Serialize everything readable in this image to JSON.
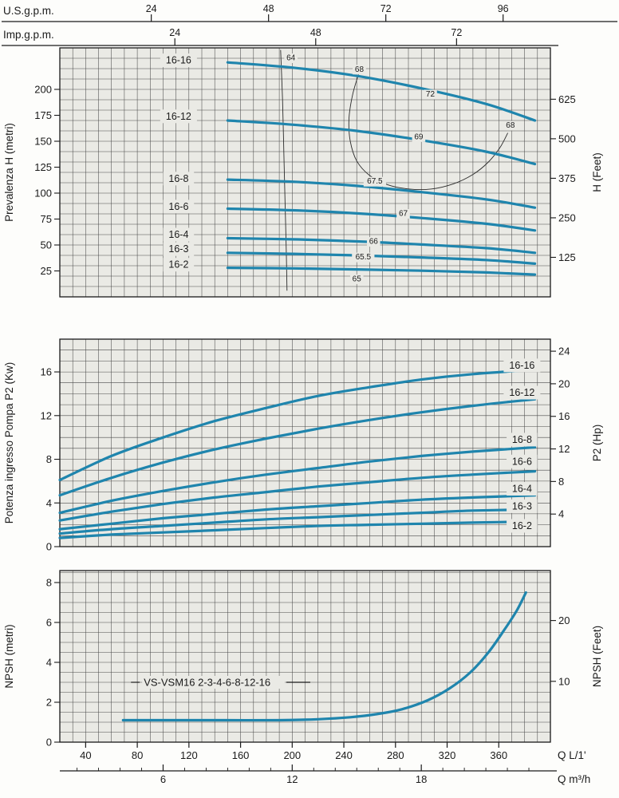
{
  "colors": {
    "plot_bg": "#eaeae5",
    "grid": "#4a4a4a",
    "border": "#1a1a1a",
    "curve": "#1f85ad",
    "contour": "#2b2b2b",
    "text": "#1a1a1a"
  },
  "x_range_lpm": [
    20,
    400
  ],
  "top_scales": {
    "us": {
      "label": "U.S.g.p.m.",
      "ticks": [
        24,
        48,
        72,
        96
      ]
    },
    "imp": {
      "label": "Imp.g.p.m.",
      "ticks": [
        24,
        48,
        72
      ]
    }
  },
  "bottom_axes": {
    "lpm": {
      "label": "Q L/1'",
      "ticks": [
        40,
        80,
        120,
        160,
        200,
        240,
        280,
        320,
        360
      ]
    },
    "m3h": {
      "label": "Q m³/h",
      "ticks": [
        6,
        12,
        18
      ]
    }
  },
  "chart_data": [
    {
      "id": "head",
      "type": "line",
      "ylabel_left": "Prevalenza H (metri)",
      "ylabel_right": "H (Feet)",
      "xlabel": "Q L/1'",
      "y_range": [
        0,
        240
      ],
      "yticks_left": [
        25,
        50,
        75,
        100,
        125,
        150,
        175,
        200
      ],
      "yticks_right": [
        125,
        250,
        375,
        500,
        625
      ],
      "right_unit": "feet",
      "series": [
        {
          "name": "16-16",
          "label_at": [
            112,
            228
          ],
          "points": [
            [
              150,
              226
            ],
            [
              200,
              221
            ],
            [
              250,
              213
            ],
            [
              300,
              201
            ],
            [
              350,
              186
            ],
            [
              388,
              170
            ]
          ]
        },
        {
          "name": "16-12",
          "label_at": [
            112,
            174
          ],
          "points": [
            [
              150,
              170
            ],
            [
              200,
              166
            ],
            [
              250,
              160
            ],
            [
              300,
              151
            ],
            [
              350,
              140
            ],
            [
              388,
              128
            ]
          ]
        },
        {
          "name": "16-8",
          "label_at": [
            112,
            114
          ],
          "points": [
            [
              150,
              113
            ],
            [
              200,
              111
            ],
            [
              250,
              107
            ],
            [
              300,
              101
            ],
            [
              350,
              94
            ],
            [
              388,
              86
            ]
          ]
        },
        {
          "name": "16-6",
          "label_at": [
            112,
            87
          ],
          "points": [
            [
              150,
              85
            ],
            [
              200,
              83.5
            ],
            [
              250,
              80.5
            ],
            [
              300,
              76
            ],
            [
              350,
              70.5
            ],
            [
              388,
              64
            ]
          ]
        },
        {
          "name": "16-4",
          "label_at": [
            112,
            60
          ],
          "points": [
            [
              150,
              56.5
            ],
            [
              200,
              55.5
            ],
            [
              250,
              53.5
            ],
            [
              300,
              50.5
            ],
            [
              350,
              47
            ],
            [
              388,
              42.5
            ]
          ]
        },
        {
          "name": "16-3",
          "label_at": [
            112,
            46
          ],
          "points": [
            [
              150,
              42.5
            ],
            [
              200,
              41.5
            ],
            [
              250,
              40
            ],
            [
              300,
              38
            ],
            [
              350,
              35.5
            ],
            [
              388,
              32
            ]
          ]
        },
        {
          "name": "16-2",
          "label_at": [
            112,
            31
          ],
          "points": [
            [
              150,
              28
            ],
            [
              200,
              27.5
            ],
            [
              250,
              26.5
            ],
            [
              300,
              25.2
            ],
            [
              350,
              23.5
            ],
            [
              388,
              21.5
            ]
          ]
        }
      ],
      "efficiency": {
        "lines": [
          {
            "label": "64",
            "label_at": [
              199,
              230
            ],
            "points": [
              [
                191,
                238
              ],
              [
                192.5,
                190
              ],
              [
                193.5,
                140
              ],
              [
                194.5,
                90
              ],
              [
                195.5,
                40
              ],
              [
                196,
                6
              ]
            ]
          },
          {
            "label": "68",
            "label_at": [
              252,
              219
            ],
            "points": [
              [
                253,
                221
              ],
              [
                247,
                196
              ],
              [
                244,
                172
              ],
              [
                245,
                150
              ],
              [
                250,
                131
              ],
              [
                260,
                117
              ],
              [
                274,
                108
              ],
              [
                290,
                104
              ],
              [
                308,
                104
              ],
              [
                325,
                109
              ],
              [
                340,
                118
              ],
              [
                352,
                130
              ],
              [
                361,
                144
              ],
              [
                367,
                158
              ]
            ]
          }
        ],
        "point_labels": [
          {
            "label": "72",
            "at": [
              307,
              195
            ]
          },
          {
            "label": "69",
            "at": [
              298,
              154
            ]
          },
          {
            "label": "68",
            "at": [
              369,
              165
            ]
          },
          {
            "label": "67.5",
            "at": [
              264,
              111
            ]
          },
          {
            "label": "67",
            "at": [
              286,
              80
            ]
          },
          {
            "label": "66",
            "at": [
              263,
              53
            ]
          },
          {
            "label": "65.5",
            "at": [
              255,
              38
            ]
          },
          {
            "label": "65",
            "at": [
              250,
              17
            ]
          }
        ]
      }
    },
    {
      "id": "power",
      "type": "line",
      "ylabel_left": "Potenza ingresso Pompa P2 (Kw)",
      "ylabel_right": "P2 (Hp)",
      "xlabel": "Q L/1'",
      "y_range": [
        0,
        19
      ],
      "yticks_left": [
        0,
        4,
        8,
        12,
        16
      ],
      "yticks_right": [
        4,
        8,
        12,
        16,
        20,
        24
      ],
      "right_unit": "hp",
      "series": [
        {
          "name": "16-16",
          "label_at": [
            378,
            16.6
          ],
          "points": [
            [
              20,
              6.1
            ],
            [
              60,
              8.3
            ],
            [
              100,
              10.0
            ],
            [
              140,
              11.5
            ],
            [
              180,
              12.7
            ],
            [
              220,
              13.8
            ],
            [
              260,
              14.6
            ],
            [
              300,
              15.3
            ],
            [
              340,
              15.8
            ],
            [
              388,
              16.2
            ]
          ]
        },
        {
          "name": "16-12",
          "label_at": [
            378,
            14.1
          ],
          "points": [
            [
              20,
              4.7
            ],
            [
              60,
              6.3
            ],
            [
              100,
              7.7
            ],
            [
              140,
              8.9
            ],
            [
              180,
              9.9
            ],
            [
              220,
              10.8
            ],
            [
              260,
              11.6
            ],
            [
              300,
              12.3
            ],
            [
              340,
              12.9
            ],
            [
              388,
              13.5
            ]
          ]
        },
        {
          "name": "16-8",
          "label_at": [
            378,
            9.8
          ],
          "points": [
            [
              20,
              3.1
            ],
            [
              60,
              4.2
            ],
            [
              100,
              5.1
            ],
            [
              140,
              5.9
            ],
            [
              180,
              6.6
            ],
            [
              220,
              7.2
            ],
            [
              260,
              7.8
            ],
            [
              300,
              8.3
            ],
            [
              340,
              8.7
            ],
            [
              388,
              9.1
            ]
          ]
        },
        {
          "name": "16-6",
          "label_at": [
            378,
            7.8
          ],
          "points": [
            [
              20,
              2.4
            ],
            [
              60,
              3.2
            ],
            [
              100,
              3.9
            ],
            [
              140,
              4.5
            ],
            [
              180,
              5.0
            ],
            [
              220,
              5.5
            ],
            [
              260,
              5.9
            ],
            [
              300,
              6.3
            ],
            [
              340,
              6.6
            ],
            [
              388,
              6.9
            ]
          ]
        },
        {
          "name": "16-4",
          "label_at": [
            378,
            5.3
          ],
          "points": [
            [
              20,
              1.6
            ],
            [
              60,
              2.1
            ],
            [
              100,
              2.6
            ],
            [
              140,
              3.0
            ],
            [
              180,
              3.4
            ],
            [
              220,
              3.7
            ],
            [
              260,
              4.0
            ],
            [
              300,
              4.3
            ],
            [
              340,
              4.5
            ],
            [
              388,
              4.7
            ]
          ]
        },
        {
          "name": "16-3",
          "label_at": [
            378,
            3.7
          ],
          "points": [
            [
              20,
              1.2
            ],
            [
              60,
              1.6
            ],
            [
              100,
              1.9
            ],
            [
              140,
              2.2
            ],
            [
              180,
              2.5
            ],
            [
              220,
              2.7
            ],
            [
              260,
              2.9
            ],
            [
              300,
              3.1
            ],
            [
              340,
              3.3
            ],
            [
              388,
              3.4
            ]
          ]
        },
        {
          "name": "16-2",
          "label_at": [
            378,
            1.9
          ],
          "points": [
            [
              20,
              0.8
            ],
            [
              60,
              1.1
            ],
            [
              100,
              1.3
            ],
            [
              140,
              1.5
            ],
            [
              180,
              1.7
            ],
            [
              220,
              1.9
            ],
            [
              260,
              2.0
            ],
            [
              300,
              2.1
            ],
            [
              340,
              2.2
            ],
            [
              388,
              2.3
            ]
          ]
        }
      ]
    },
    {
      "id": "npsh",
      "type": "line",
      "ylabel_left": "NPSH (metri)",
      "ylabel_right": "NPSH (Feet)",
      "xlabel": "Q L/1'",
      "y_range": [
        0,
        8.6
      ],
      "yticks_left": [
        0,
        2,
        4,
        6,
        8
      ],
      "yticks_right": [
        10,
        20
      ],
      "right_unit": "feet",
      "series": [
        {
          "name": "NPSH",
          "points": [
            [
              69,
              1.1
            ],
            [
              110,
              1.1
            ],
            [
              150,
              1.1
            ],
            [
              190,
              1.1
            ],
            [
              220,
              1.15
            ],
            [
              245,
              1.25
            ],
            [
              265,
              1.4
            ],
            [
              285,
              1.65
            ],
            [
              305,
              2.1
            ],
            [
              322,
              2.7
            ],
            [
              338,
              3.5
            ],
            [
              352,
              4.5
            ],
            [
              364,
              5.6
            ],
            [
              374,
              6.6
            ],
            [
              381,
              7.5
            ]
          ]
        }
      ],
      "annotation": {
        "text": "VS-VSM16 2-3-4-6-8-12-16",
        "at_lpm": 85,
        "at_value": 3.0
      }
    }
  ]
}
